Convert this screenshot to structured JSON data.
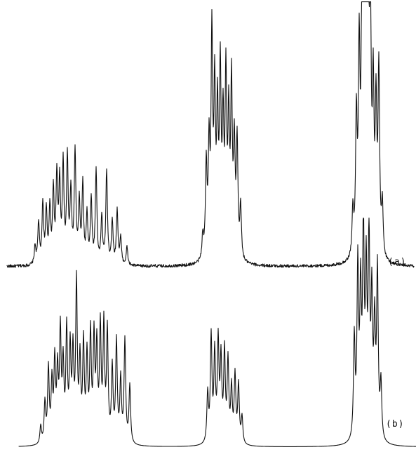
{
  "chart_data": {
    "type": "line",
    "title": "",
    "xlabel": "",
    "ylabel": "",
    "grid": false,
    "traces": [
      {
        "label": "(a)",
        "baseline_noise": true,
        "multiplets": [
          {
            "peaks": [
              {
                "x": 50,
                "y": 0.07
              },
              {
                "x": 55,
                "y": 0.16
              },
              {
                "x": 61,
                "y": 0.23
              },
              {
                "x": 66,
                "y": 0.2
              },
              {
                "x": 71,
                "y": 0.21
              },
              {
                "x": 76,
                "y": 0.28
              },
              {
                "x": 81,
                "y": 0.33
              },
              {
                "x": 85,
                "y": 0.3
              },
              {
                "x": 90,
                "y": 0.38
              },
              {
                "x": 96,
                "y": 0.4
              },
              {
                "x": 101,
                "y": 0.27
              },
              {
                "x": 107,
                "y": 0.43
              },
              {
                "x": 113,
                "y": 0.23
              },
              {
                "x": 118,
                "y": 0.3
              },
              {
                "x": 124,
                "y": 0.19
              },
              {
                "x": 130,
                "y": 0.25
              },
              {
                "x": 137,
                "y": 0.36
              },
              {
                "x": 145,
                "y": 0.18
              },
              {
                "x": 152,
                "y": 0.36
              },
              {
                "x": 160,
                "y": 0.17
              },
              {
                "x": 167,
                "y": 0.21
              },
              {
                "x": 172,
                "y": 0.1
              },
              {
                "x": 181,
                "y": 0.07
              }
            ]
          },
          {
            "peaks": [
              {
                "x": 289,
                "y": 0.09
              },
              {
                "x": 294,
                "y": 0.36
              },
              {
                "x": 298,
                "y": 0.41
              },
              {
                "x": 302,
                "y": 0.84
              },
              {
                "x": 306,
                "y": 0.62
              },
              {
                "x": 310,
                "y": 0.53
              },
              {
                "x": 314,
                "y": 0.7
              },
              {
                "x": 318,
                "y": 0.49
              },
              {
                "x": 322,
                "y": 0.68
              },
              {
                "x": 326,
                "y": 0.51
              },
              {
                "x": 330,
                "y": 0.65
              },
              {
                "x": 334,
                "y": 0.42
              },
              {
                "x": 338,
                "y": 0.45
              },
              {
                "x": 343,
                "y": 0.2
              }
            ]
          },
          {
            "peaks": [
              {
                "x": 503,
                "y": 0.18
              },
              {
                "x": 508,
                "y": 0.52
              },
              {
                "x": 512,
                "y": 0.75
              },
              {
                "x": 516,
                "y": 0.95
              },
              {
                "x": 519,
                "y": 0.97
              },
              {
                "x": 522,
                "y": 0.92
              },
              {
                "x": 525,
                "y": 0.96
              },
              {
                "x": 528,
                "y": 0.86
              },
              {
                "x": 532,
                "y": 0.6
              },
              {
                "x": 536,
                "y": 0.55
              },
              {
                "x": 540,
                "y": 0.71
              },
              {
                "x": 545,
                "y": 0.2
              }
            ]
          }
        ]
      },
      {
        "label": "(b)",
        "baseline_noise": false,
        "multiplets": [
          {
            "peaks": [
              {
                "x": 58,
                "y": 0.08
              },
              {
                "x": 64,
                "y": 0.18
              },
              {
                "x": 69,
                "y": 0.33
              },
              {
                "x": 74,
                "y": 0.26
              },
              {
                "x": 78,
                "y": 0.35
              },
              {
                "x": 82,
                "y": 0.3
              },
              {
                "x": 86,
                "y": 0.48
              },
              {
                "x": 90,
                "y": 0.33
              },
              {
                "x": 95,
                "y": 0.49
              },
              {
                "x": 100,
                "y": 0.4
              },
              {
                "x": 104,
                "y": 0.38
              },
              {
                "x": 109,
                "y": 0.7
              },
              {
                "x": 114,
                "y": 0.35
              },
              {
                "x": 119,
                "y": 0.43
              },
              {
                "x": 124,
                "y": 0.37
              },
              {
                "x": 129,
                "y": 0.47
              },
              {
                "x": 134,
                "y": 0.45
              },
              {
                "x": 138,
                "y": 0.41
              },
              {
                "x": 143,
                "y": 0.5
              },
              {
                "x": 148,
                "y": 0.51
              },
              {
                "x": 153,
                "y": 0.49
              },
              {
                "x": 160,
                "y": 0.33
              },
              {
                "x": 166,
                "y": 0.45
              },
              {
                "x": 172,
                "y": 0.28
              },
              {
                "x": 178,
                "y": 0.46
              },
              {
                "x": 185,
                "y": 0.26
              }
            ]
          },
          {
            "peaks": [
              {
                "x": 296,
                "y": 0.22
              },
              {
                "x": 301,
                "y": 0.47
              },
              {
                "x": 306,
                "y": 0.39
              },
              {
                "x": 311,
                "y": 0.44
              },
              {
                "x": 315,
                "y": 0.36
              },
              {
                "x": 320,
                "y": 0.4
              },
              {
                "x": 325,
                "y": 0.36
              },
              {
                "x": 330,
                "y": 0.24
              },
              {
                "x": 335,
                "y": 0.3
              },
              {
                "x": 340,
                "y": 0.26
              },
              {
                "x": 345,
                "y": 0.12
              }
            ]
          },
          {
            "peaks": [
              {
                "x": 505,
                "y": 0.45
              },
              {
                "x": 510,
                "y": 0.76
              },
              {
                "x": 514,
                "y": 0.62
              },
              {
                "x": 518,
                "y": 0.92
              },
              {
                "x": 522,
                "y": 0.7
              },
              {
                "x": 526,
                "y": 0.87
              },
              {
                "x": 530,
                "y": 0.6
              },
              {
                "x": 534,
                "y": 0.48
              },
              {
                "x": 538,
                "y": 0.75
              },
              {
                "x": 543,
                "y": 0.25
              }
            ]
          }
        ]
      }
    ]
  }
}
